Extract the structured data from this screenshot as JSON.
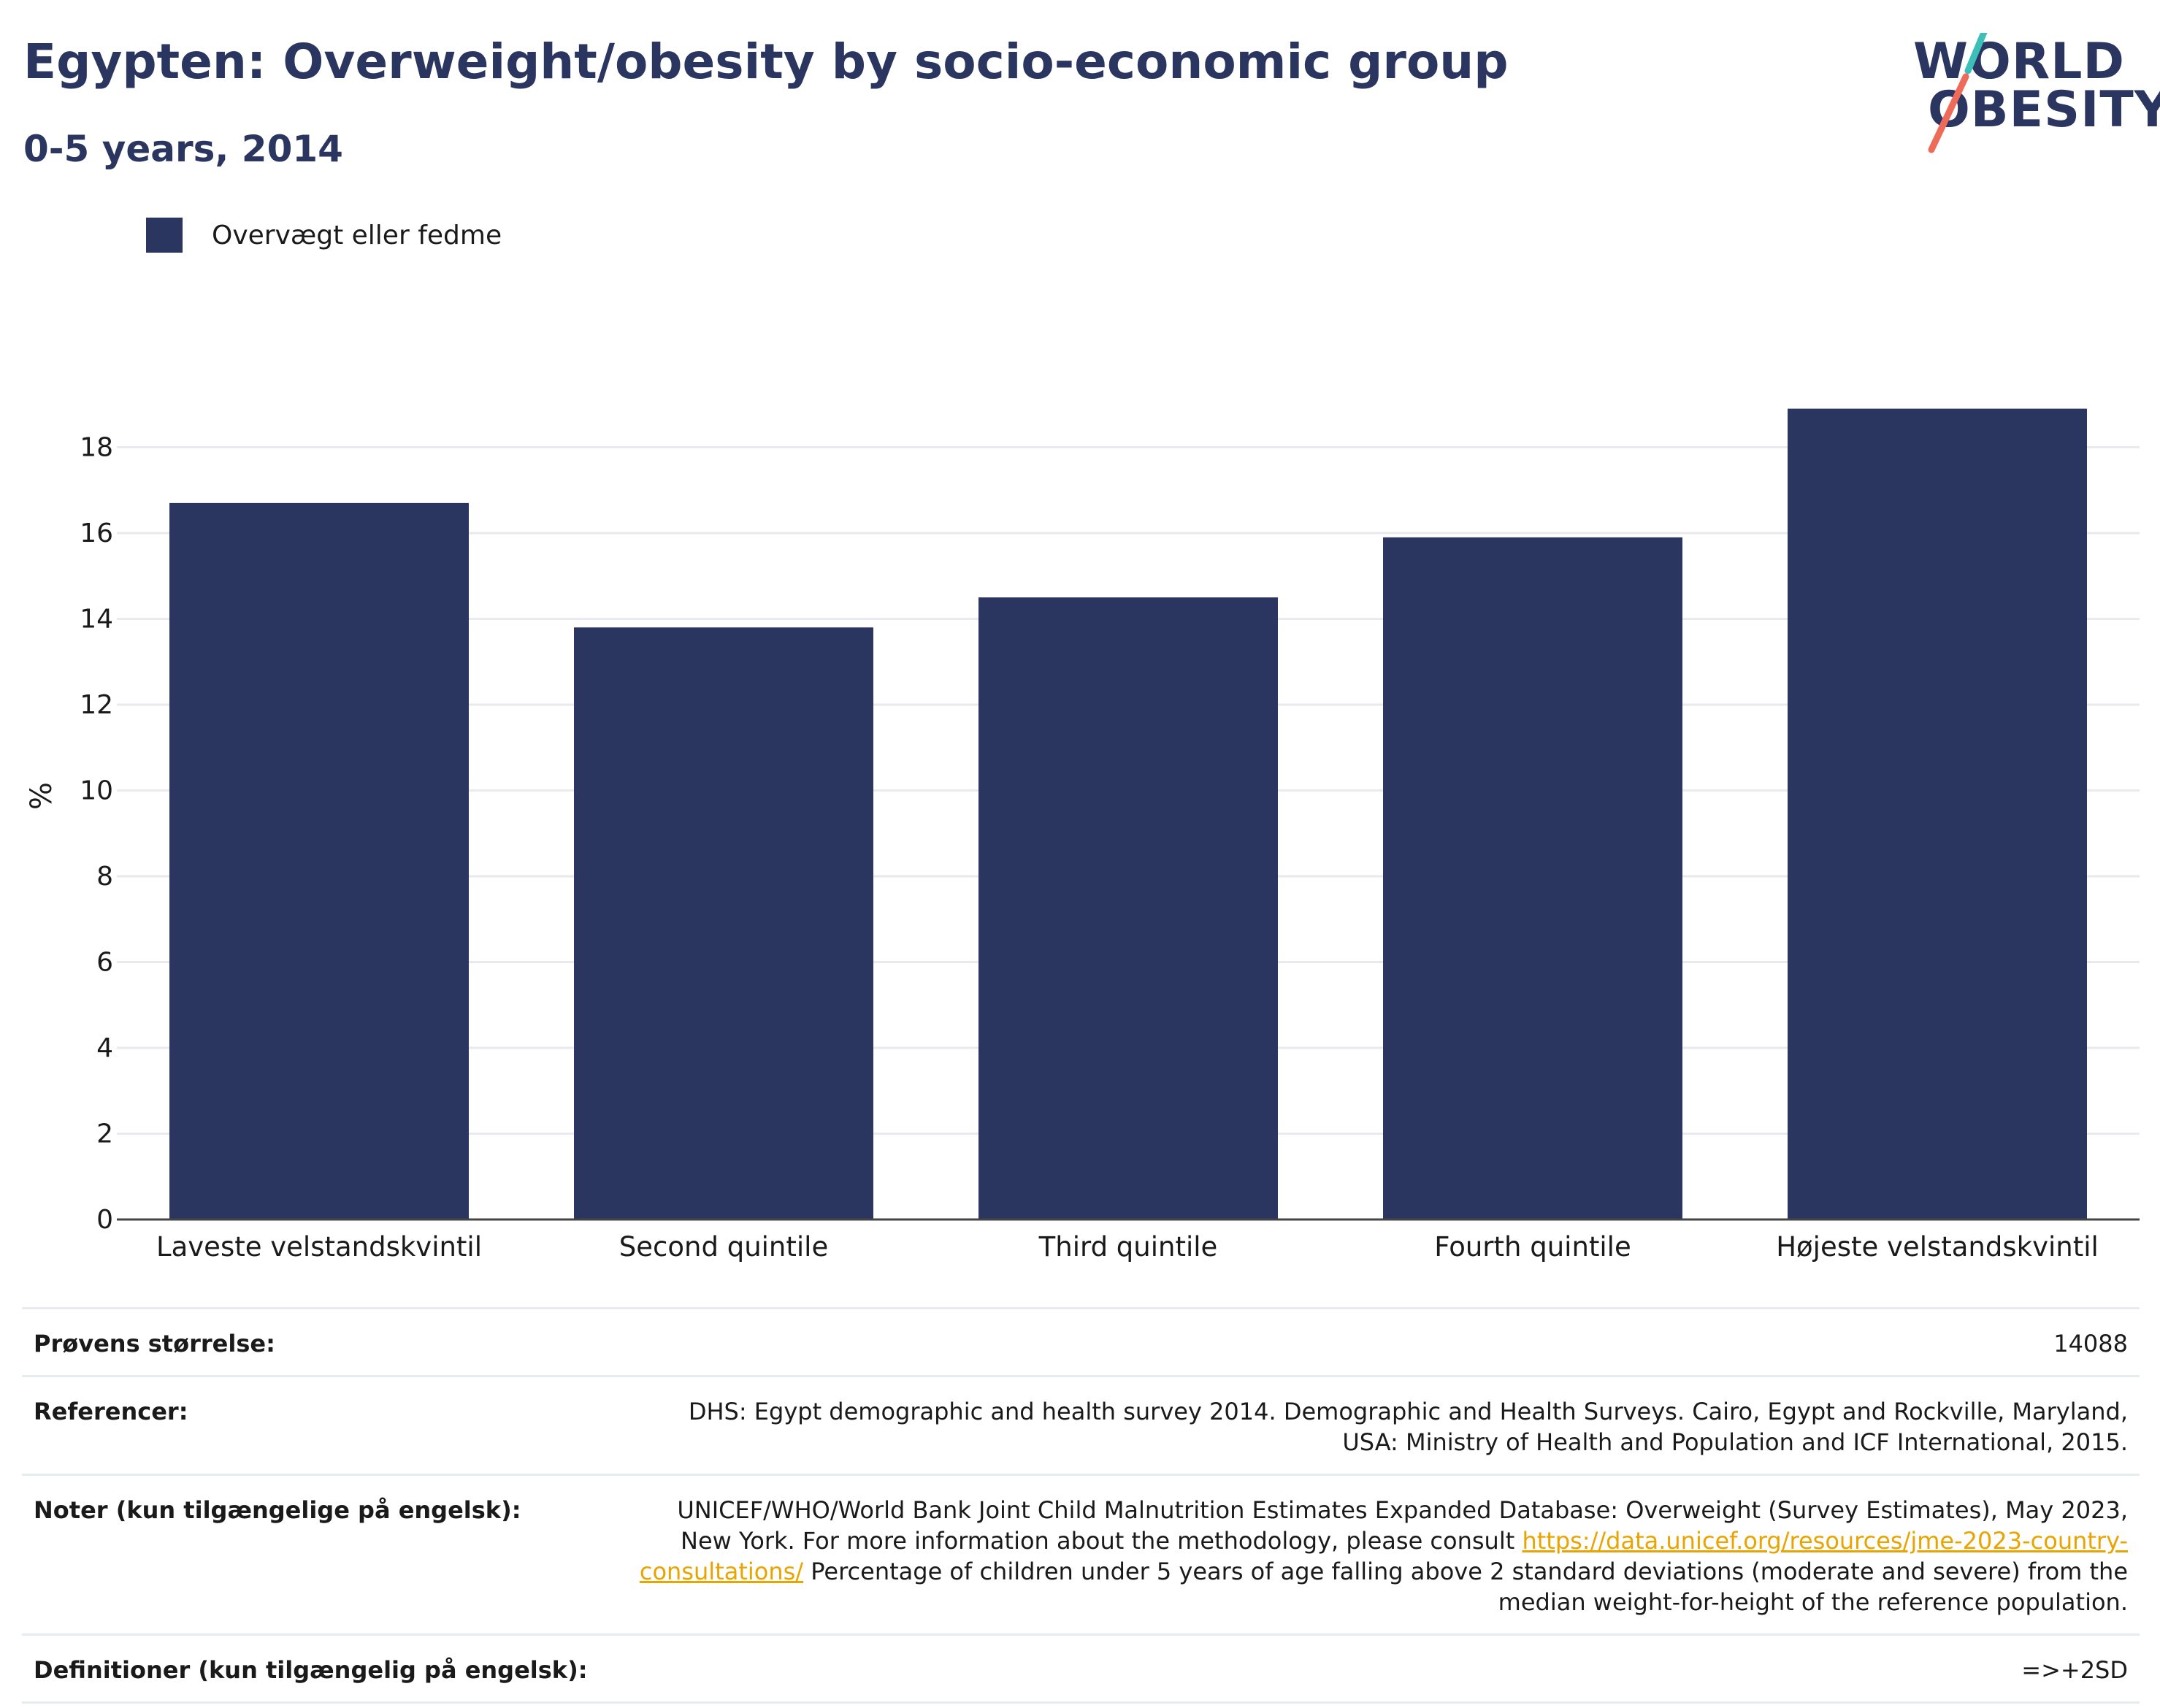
{
  "header": {
    "title": "Egypten: Overweight/obesity by socio-economic group",
    "subtitle": "0-5 years, 2014"
  },
  "logo": {
    "line1": "WORLD",
    "line2": "OBESITY"
  },
  "legend": {
    "label": "Overvægt eller fedme"
  },
  "colors": {
    "bar": "#2a3560",
    "accent_teal": "#3bbfb8",
    "accent_coral": "#ee6b5a",
    "link": "#e9a400"
  },
  "chart_data": {
    "type": "bar",
    "categories": [
      "Laveste velstandskvintil",
      "Second quintile",
      "Third quintile",
      "Fourth quintile",
      "Højeste velstandskvintil"
    ],
    "series": [
      {
        "name": "Overvægt eller fedme",
        "values": [
          16.7,
          13.8,
          14.5,
          15.9,
          18.9
        ]
      }
    ],
    "ylabel": "%",
    "ylim": [
      0,
      20
    ],
    "yticks": [
      0,
      2,
      4,
      6,
      8,
      10,
      12,
      14,
      16,
      18
    ],
    "grid": true,
    "legend": "top-left"
  },
  "meta": {
    "sample_label": "Prøvens størrelse:",
    "sample_value": "14088",
    "references_label": "Referencer:",
    "references_value": "DHS: Egypt demographic and health survey 2014. Demographic and Health Surveys. Cairo, Egypt and Rockville, Maryland, USA: Ministry of Health and Population and ICF International, 2015.",
    "notes_label": "Noter (kun tilgængelige på engelsk):",
    "notes_pre": "UNICEF/WHO/World Bank Joint Child Malnutrition Estimates Expanded Database: Overweight (Survey Estimates), May 2023, New York. For more information about the methodology, please consult ",
    "notes_link": "https://data.unicef.org/resources/jme-2023-country-consultations/",
    "notes_post": " Percentage of children under 5 years of age falling above 2 standard deviations (moderate and severe) from the median weight-for-height of the reference population.",
    "definitions_label": "Definitioner (kun tilgængelig på engelsk):",
    "definitions_value": "=>+2SD"
  }
}
